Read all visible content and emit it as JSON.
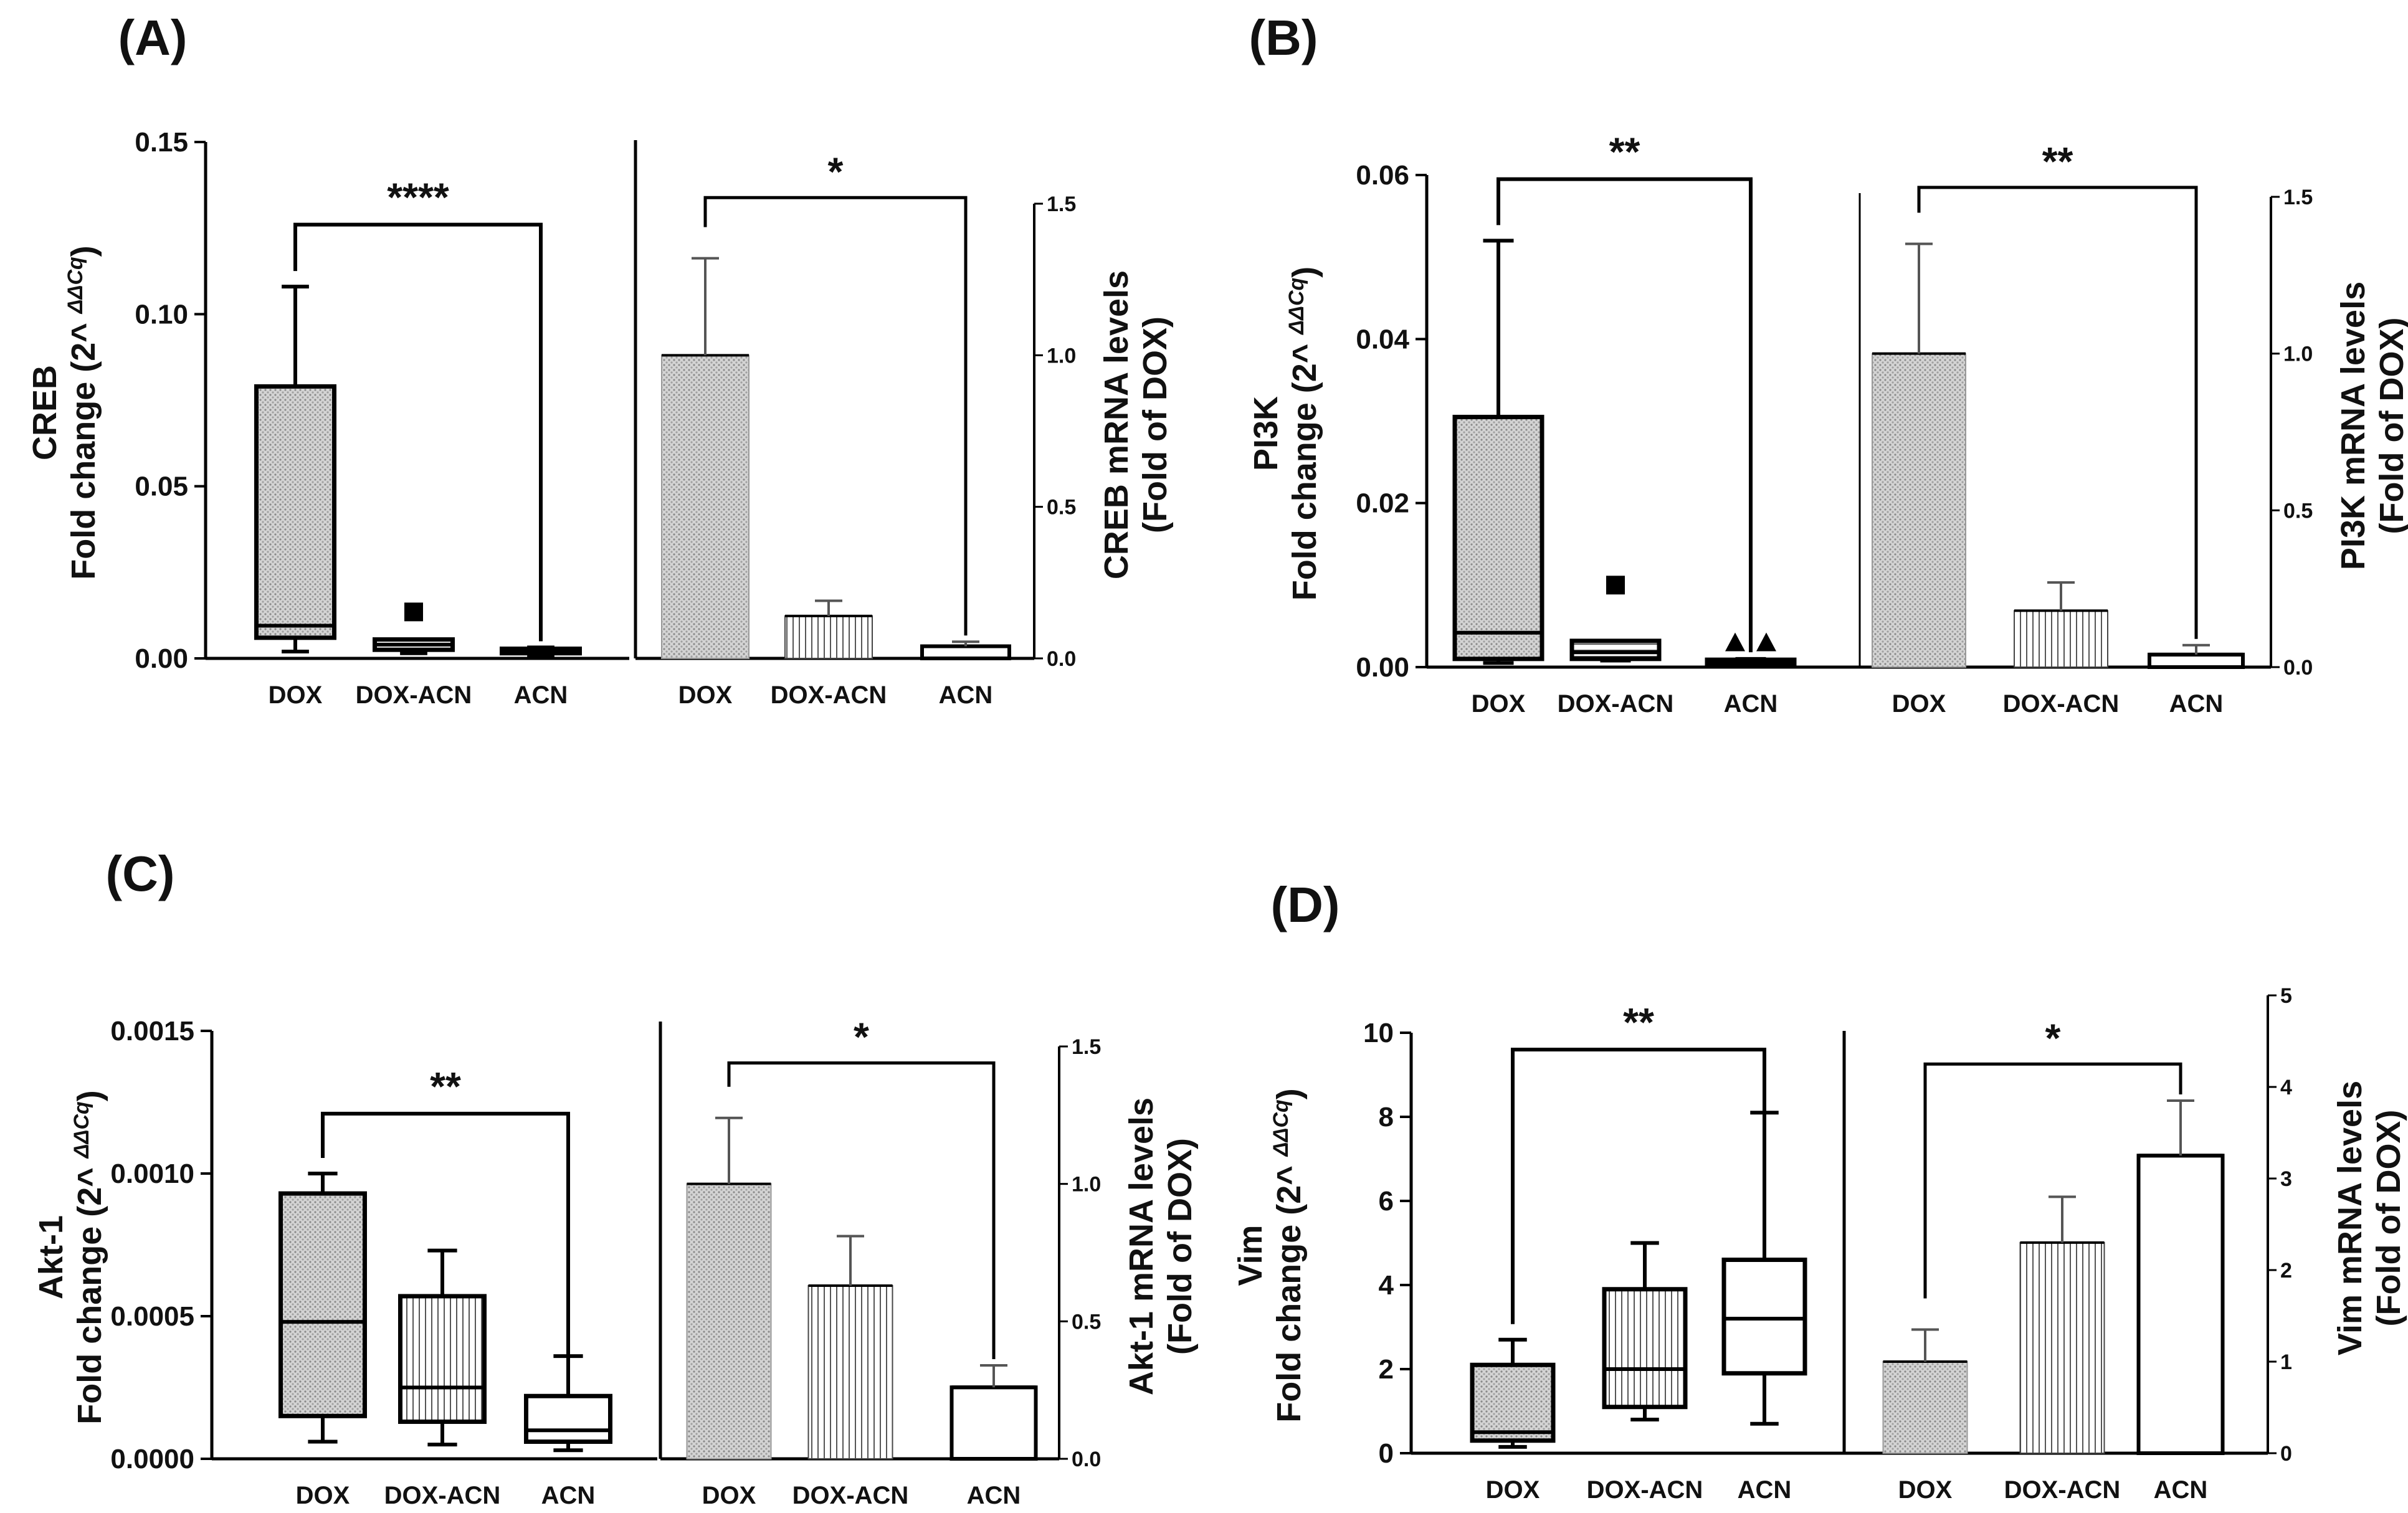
{
  "figure": {
    "fold_change_label": "Fold change (2^ ",
    "fold_change_suffix": "ΔΔCq",
    "fold_change_close": ")"
  },
  "chart_data": [
    {
      "panel": "(A)",
      "gene": "CREB",
      "box": {
        "type": "box",
        "ylim": [
          0,
          0.15
        ],
        "ticks": [
          "0.00",
          "0.05",
          "0.10",
          "0.15"
        ],
        "categories": [
          "DOX",
          "DOX-ACN",
          "ACN"
        ],
        "series": [
          {
            "name": "DOX",
            "min": 0.002,
            "q1": 0.006,
            "median": 0.0095,
            "q3": 0.079,
            "max": 0.108
          },
          {
            "name": "DOX-ACN",
            "min": 0.0015,
            "q1": 0.0025,
            "median": 0.004,
            "q3": 0.0055,
            "max": 0.0055,
            "outliers": [
              0.0135
            ],
            "marker": "square"
          },
          {
            "name": "ACN",
            "min": 0.001,
            "q1": 0.0015,
            "median": 0.002,
            "q3": 0.0028,
            "max": 0.0032
          }
        ],
        "sig": {
          "from": 0,
          "to": 2,
          "label": "****",
          "y": 0.126
        }
      },
      "bar": {
        "type": "bar",
        "ylim": [
          0,
          1.5
        ],
        "ticks": [
          "0.0",
          "0.5",
          "1.0",
          "1.5"
        ],
        "categories": [
          "DOX",
          "DOX-ACN",
          "ACN"
        ],
        "values": [
          1.0,
          0.14,
          0.04
        ],
        "errors": [
          0.32,
          0.05,
          0.015
        ],
        "patterns": [
          "dots",
          "vlines",
          "blank"
        ],
        "ylabel": [
          "CREB mRNA levels",
          "(Fold of DOX)"
        ],
        "sig": {
          "from": 0,
          "to": 2,
          "label": "*",
          "y": 1.52
        }
      }
    },
    {
      "panel": "(B)",
      "gene": "PI3K",
      "box": {
        "type": "box",
        "ylim": [
          0,
          0.06
        ],
        "ticks": [
          "0.00",
          "0.02",
          "0.04",
          "0.06"
        ],
        "categories": [
          "DOX",
          "DOX-ACN",
          "ACN"
        ],
        "series": [
          {
            "name": "DOX",
            "min": 0.0005,
            "q1": 0.001,
            "median": 0.0042,
            "q3": 0.0305,
            "max": 0.052
          },
          {
            "name": "DOX-ACN",
            "min": 0.0008,
            "q1": 0.001,
            "median": 0.0018,
            "q3": 0.0032,
            "max": 0.0032,
            "outliers": [
              0.01
            ],
            "marker": "square"
          },
          {
            "name": "ACN",
            "min": 0.0002,
            "q1": 0.0004,
            "median": 0.0006,
            "q3": 0.0009,
            "max": 0.001,
            "outliers": [
              0.003,
              0.003
            ],
            "marker": "triangle"
          }
        ],
        "sig": {
          "from": 0,
          "to": 2,
          "label": "**",
          "y": 0.0595
        }
      },
      "bar": {
        "type": "bar",
        "ylim": [
          0,
          1.5
        ],
        "ticks": [
          "0.0",
          "0.5",
          "1.0",
          "1.5"
        ],
        "categories": [
          "DOX",
          "DOX-ACN",
          "ACN"
        ],
        "values": [
          1.0,
          0.18,
          0.04
        ],
        "errors": [
          0.35,
          0.09,
          0.03
        ],
        "patterns": [
          "dots",
          "vlines",
          "blank"
        ],
        "ylabel": [
          "PI3K mRNA levels",
          "(Fold of DOX)"
        ],
        "sig": {
          "from": 0,
          "to": 2,
          "label": "**",
          "y": 1.53
        }
      }
    },
    {
      "panel": "(C)",
      "gene": "Akt-1",
      "box": {
        "type": "box",
        "ylim": [
          0,
          0.0015
        ],
        "ticks": [
          "0.0000",
          "0.0005",
          "0.0010",
          "0.0015"
        ],
        "categories": [
          "DOX",
          "DOX-ACN",
          "ACN"
        ],
        "series": [
          {
            "name": "DOX",
            "min": 6e-05,
            "q1": 0.00015,
            "median": 0.00048,
            "q3": 0.00093,
            "max": 0.001
          },
          {
            "name": "DOX-ACN",
            "min": 5e-05,
            "q1": 0.00013,
            "median": 0.00025,
            "q3": 0.00057,
            "max": 0.00073
          },
          {
            "name": "ACN",
            "min": 3e-05,
            "q1": 6e-05,
            "median": 0.0001,
            "q3": 0.00022,
            "max": 0.00036
          }
        ],
        "sig": {
          "from": 0,
          "to": 2,
          "label": "**",
          "y": 0.00121
        }
      },
      "bar": {
        "type": "bar",
        "ylim": [
          0,
          1.5
        ],
        "ticks": [
          "0.0",
          "0.5",
          "1.0",
          "1.5"
        ],
        "categories": [
          "DOX",
          "DOX-ACN",
          "ACN"
        ],
        "values": [
          1.0,
          0.63,
          0.26
        ],
        "errors": [
          0.24,
          0.18,
          0.08
        ],
        "patterns": [
          "dots",
          "vlines",
          "blank"
        ],
        "ylabel": [
          "Akt-1 mRNA levels",
          "(Fold of DOX)"
        ],
        "sig": {
          "from": 0,
          "to": 2,
          "label": "*",
          "y": 1.44
        }
      }
    },
    {
      "panel": "(D)",
      "gene": "Vim",
      "box": {
        "type": "box",
        "ylim": [
          0,
          10
        ],
        "ticks": [
          "0",
          "2",
          "4",
          "6",
          "8",
          "10"
        ],
        "categories": [
          "DOX",
          "DOX-ACN",
          "ACN"
        ],
        "series": [
          {
            "name": "DOX",
            "min": 0.15,
            "q1": 0.3,
            "median": 0.5,
            "q3": 2.1,
            "max": 2.7
          },
          {
            "name": "DOX-ACN",
            "min": 0.8,
            "q1": 1.1,
            "median": 2.0,
            "q3": 3.9,
            "max": 5.0
          },
          {
            "name": "ACN",
            "min": 0.7,
            "q1": 1.9,
            "median": 3.2,
            "q3": 4.6,
            "max": 8.1
          }
        ],
        "sig": {
          "from": 0,
          "to": 2,
          "label": "**",
          "y": 9.6
        }
      },
      "bar": {
        "type": "bar",
        "ylim": [
          0,
          5
        ],
        "ticks": [
          "0",
          "1",
          "2",
          "3",
          "4",
          "5"
        ],
        "categories": [
          "DOX",
          "DOX-ACN",
          "ACN"
        ],
        "values": [
          1.0,
          2.3,
          3.25
        ],
        "errors": [
          0.35,
          0.5,
          0.6
        ],
        "patterns": [
          "dots",
          "vlines",
          "blank"
        ],
        "ylabel": [
          "Vim mRNA levels",
          "(Fold of DOX)"
        ],
        "sig": {
          "from": 0,
          "to": 2,
          "label": "*",
          "y": 4.25
        }
      }
    }
  ]
}
